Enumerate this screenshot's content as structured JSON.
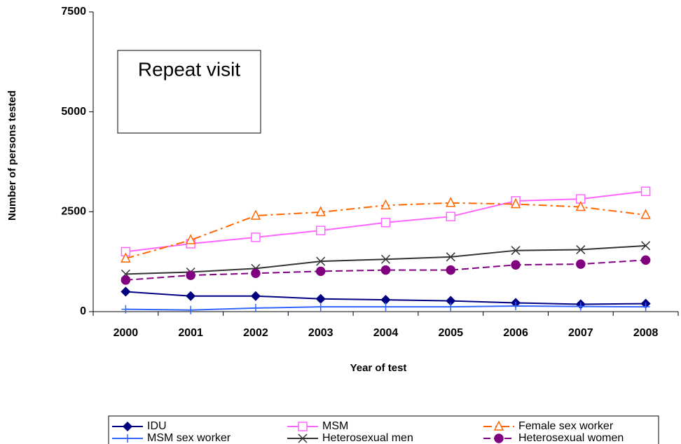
{
  "chart_data": {
    "type": "line",
    "annotation": "Repeat visit",
    "x_label": "Year of test",
    "y_label": "Number of persons tested",
    "categories": [
      "2000",
      "2001",
      "2002",
      "2003",
      "2004",
      "2005",
      "2006",
      "2007",
      "2008"
    ],
    "ylim": [
      0,
      7500
    ],
    "yticks": [
      0,
      2500,
      5000,
      7500
    ],
    "grid": false,
    "series": [
      {
        "name": "IDU",
        "color": "#000080",
        "marker": "diamond",
        "dash": "solid",
        "values": [
          500,
          390,
          390,
          320,
          295,
          270,
          220,
          185,
          200
        ]
      },
      {
        "name": "MSM",
        "color": "#ff66ff",
        "marker": "square",
        "dash": "solid",
        "values": [
          1500,
          1700,
          1860,
          2030,
          2230,
          2380,
          2770,
          2820,
          3010
        ]
      },
      {
        "name": "Female sex worker",
        "color": "#ff6600",
        "marker": "triangle",
        "dash": "dashdot",
        "values": [
          1330,
          1790,
          2400,
          2490,
          2660,
          2720,
          2690,
          2620,
          2420
        ]
      },
      {
        "name": "MSM sex worker",
        "color": "#3366ff",
        "marker": "plus",
        "dash": "solid",
        "values": [
          60,
          40,
          90,
          120,
          120,
          120,
          140,
          130,
          120
        ]
      },
      {
        "name": "Heterosexual men",
        "color": "#333333",
        "marker": "cross",
        "dash": "solid",
        "values": [
          940,
          990,
          1080,
          1260,
          1310,
          1370,
          1530,
          1550,
          1650
        ]
      },
      {
        "name": "Heterosexual women",
        "color": "#800080",
        "marker": "circle",
        "dash": "dash",
        "values": [
          790,
          910,
          960,
          1010,
          1040,
          1040,
          1170,
          1190,
          1290
        ]
      }
    ]
  }
}
